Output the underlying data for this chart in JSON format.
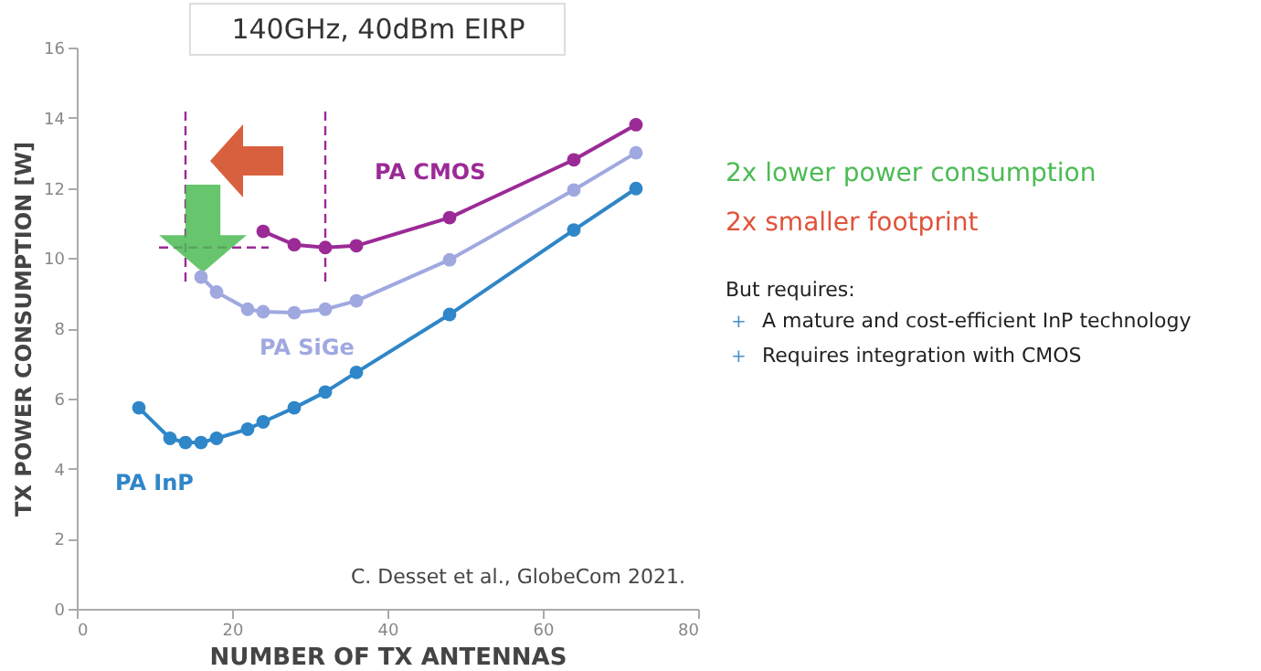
{
  "chart_data": {
    "type": "line",
    "title": "140GHz, 40dBm EIRP",
    "xlabel": "NUMBER OF TX ANTENNAS",
    "ylabel": "TX POWER CONSUMPTION [W]",
    "xlim": [
      0,
      80
    ],
    "xticks": [
      0,
      20,
      40,
      60,
      80
    ],
    "ylim": [
      0,
      16
    ],
    "yticks": [
      0,
      2,
      4,
      6,
      8,
      10,
      12,
      14,
      16
    ],
    "grid": false,
    "marker": "circle",
    "line_style": "solid",
    "series": [
      {
        "name": "PA CMOS",
        "color": "#9b2a96",
        "x": [
          24,
          28,
          32,
          36,
          48,
          64,
          72
        ],
        "values": [
          10.76,
          10.38,
          10.3,
          10.35,
          11.15,
          12.8,
          13.8
        ]
      },
      {
        "name": "PA SiGe",
        "color": "#a0a8e0",
        "x": [
          16,
          18,
          22,
          24,
          28,
          32,
          36,
          48,
          64,
          72
        ],
        "values": [
          9.46,
          9.03,
          8.54,
          8.47,
          8.44,
          8.54,
          8.78,
          9.95,
          11.94,
          13.0
        ]
      },
      {
        "name": "PA InP",
        "color": "#2f86c8",
        "x": [
          8,
          12,
          14,
          16,
          18,
          22,
          24,
          28,
          32,
          36,
          48,
          64,
          72
        ],
        "values": [
          5.73,
          4.86,
          4.74,
          4.74,
          4.86,
          5.12,
          5.33,
          5.73,
          6.18,
          6.74,
          8.39,
          10.8,
          11.98
        ]
      }
    ],
    "ref_lines": [
      {
        "axis": "x",
        "value": 14,
        "color": "#9b2a96",
        "line_style": "dashed"
      },
      {
        "axis": "x",
        "value": 32,
        "color": "#9b2a96",
        "line_style": "dashed"
      },
      {
        "axis": "y",
        "value": 10.3,
        "color": "#9b2a96",
        "line_style": "dashed"
      }
    ],
    "annotations": [
      "2x lower power consumption",
      "2x smaller footprint",
      "But requires:",
      "+",
      "A mature and cost-efficient InP technology",
      "+",
      "Requires integration with CMOS",
      "C. Desset et al., GlobeCom 2021."
    ]
  }
}
